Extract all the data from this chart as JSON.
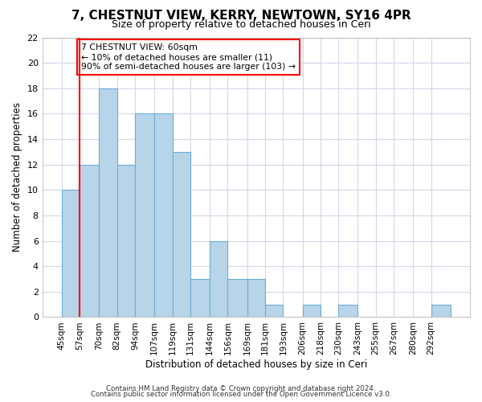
{
  "title": "7, CHESTNUT VIEW, KERRY, NEWTOWN, SY16 4PR",
  "subtitle": "Size of property relative to detached houses in Ceri",
  "xlabel": "Distribution of detached houses by size in Ceri",
  "ylabel": "Number of detached properties",
  "bins": [
    45,
    57,
    70,
    82,
    94,
    107,
    119,
    131,
    144,
    156,
    169,
    181,
    193,
    206,
    218,
    230,
    243,
    255,
    267,
    280,
    292,
    305
  ],
  "bin_labels": [
    "45sqm",
    "57sqm",
    "70sqm",
    "82sqm",
    "94sqm",
    "107sqm",
    "119sqm",
    "131sqm",
    "144sqm",
    "156sqm",
    "169sqm",
    "181sqm",
    "193sqm",
    "206sqm",
    "218sqm",
    "230sqm",
    "243sqm",
    "255sqm",
    "267sqm",
    "280sqm",
    "292sqm"
  ],
  "counts": [
    10,
    12,
    18,
    12,
    16,
    16,
    13,
    3,
    6,
    3,
    3,
    1,
    0,
    1,
    0,
    1,
    0,
    0,
    0,
    0,
    1
  ],
  "bar_color": "#b8d4e8",
  "bar_edge_color": "#6baed6",
  "red_line_x": 57,
  "ylim": [
    0,
    22
  ],
  "yticks": [
    0,
    2,
    4,
    6,
    8,
    10,
    12,
    14,
    16,
    18,
    20,
    22
  ],
  "annotation_title": "7 CHESTNUT VIEW: 60sqm",
  "annotation_line1": "← 10% of detached houses are smaller (11)",
  "annotation_line2": "90% of semi-detached houses are larger (103) →",
  "footer1": "Contains HM Land Registry data © Crown copyright and database right 2024.",
  "footer2": "Contains public sector information licensed under the Open Government Licence v3.0.",
  "background_color": "#ffffff",
  "grid_color": "#d0d8e8"
}
